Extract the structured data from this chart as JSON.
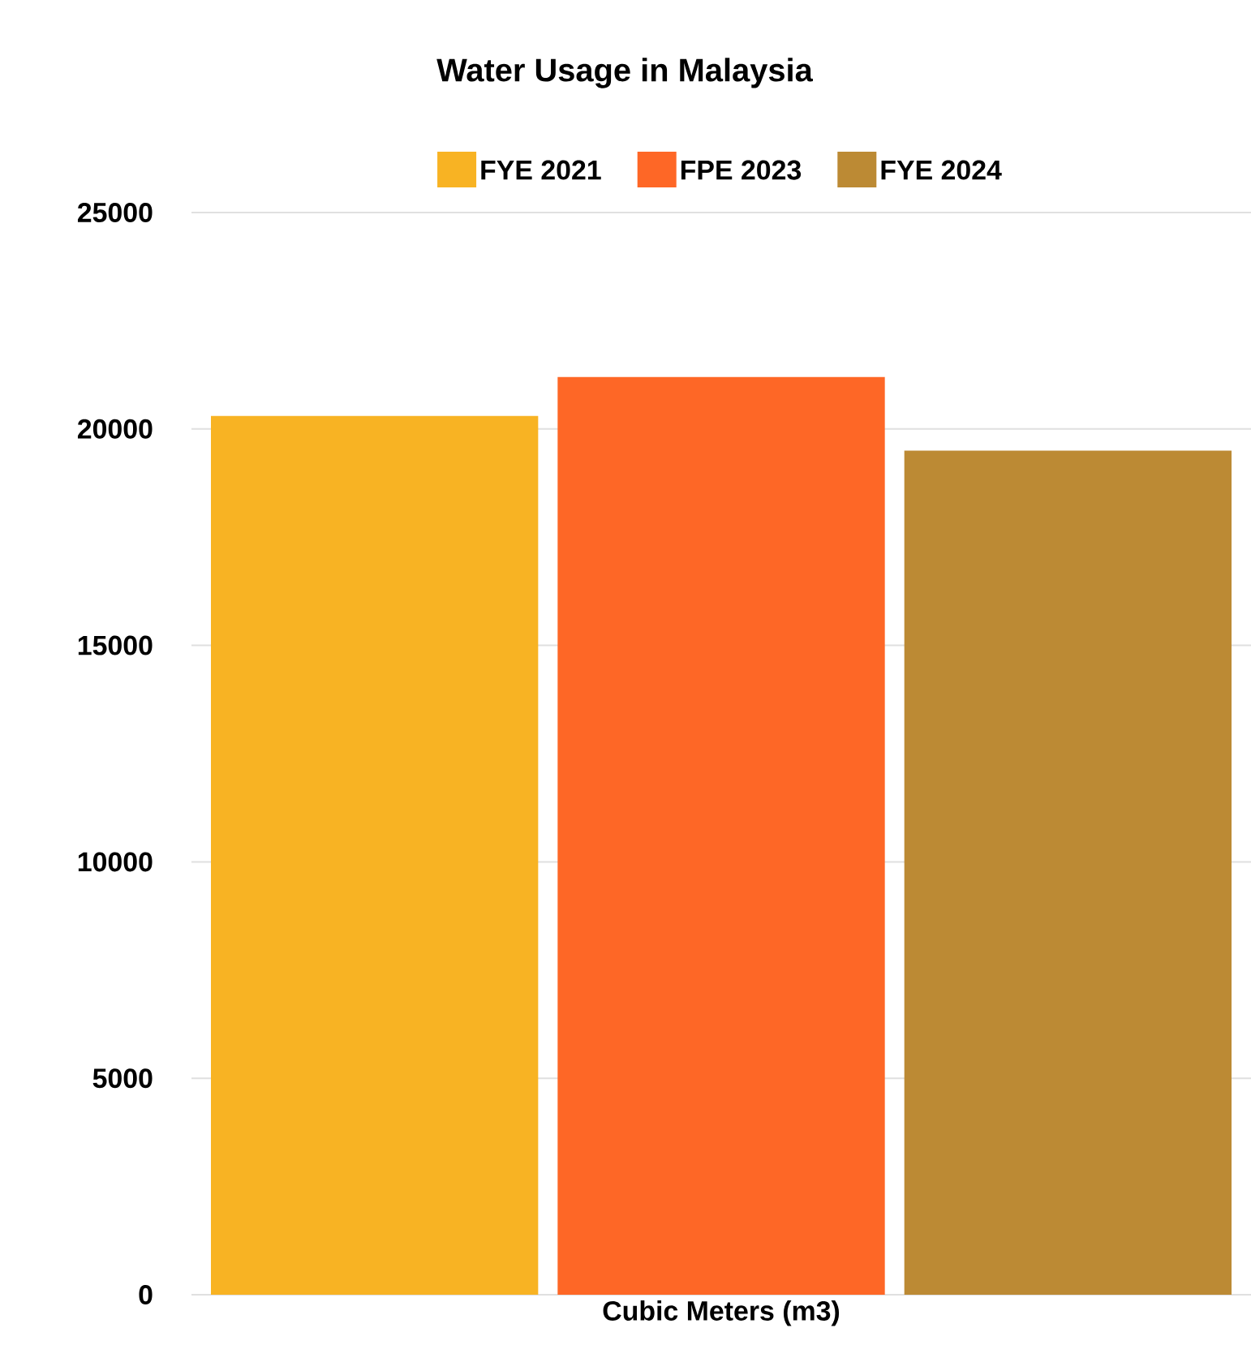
{
  "chart_data": {
    "type": "bar",
    "title": "Water Usage in Malaysia",
    "categories": [
      "Cubic Meters (m3)"
    ],
    "series": [
      {
        "name": "FYE 2021",
        "color": "#f8b323",
        "values": [
          20300
        ]
      },
      {
        "name": "FPE 2023",
        "color": "#fe6726",
        "values": [
          21200
        ]
      },
      {
        "name": "FYE 2024",
        "color": "#bc8a34",
        "values": [
          19500
        ]
      }
    ],
    "ylim": [
      0,
      25000
    ],
    "yticks": [
      0,
      5000,
      10000,
      15000,
      20000,
      25000
    ],
    "grid": "y",
    "legend": "top"
  }
}
